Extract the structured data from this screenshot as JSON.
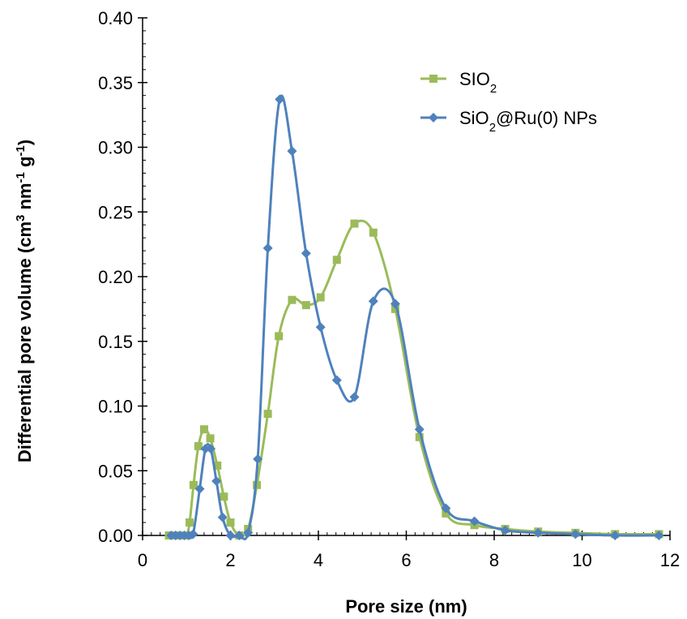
{
  "chart_data": {
    "type": "line",
    "xlabel": "Pore size (nm)",
    "ylabel": {
      "base": "Differential pore volume (cm",
      "sup1": "3",
      "mid": " nm",
      "sup2": "-1",
      "mid2": " g",
      "sup3": "-1",
      "end": ")"
    },
    "xlim": [
      0,
      12
    ],
    "ylim": [
      0,
      0.4
    ],
    "x_ticks": [
      0,
      2,
      4,
      6,
      8,
      10,
      12
    ],
    "x_tick_labels": [
      "0",
      "2",
      "4",
      "6",
      "8",
      "10",
      "12"
    ],
    "y_ticks": [
      0,
      0.05,
      0.1,
      0.15,
      0.2,
      0.25,
      0.3,
      0.35,
      0.4
    ],
    "y_tick_labels": [
      "0.00",
      "0.05",
      "0.10",
      "0.15",
      "0.20",
      "0.25",
      "0.30",
      "0.35",
      "0.40"
    ],
    "legend_position": "top-right",
    "grid": false,
    "series": [
      {
        "name": "SIO2",
        "name_parts": {
          "base": "SIO",
          "sub": "2",
          "rest": ""
        },
        "color": "#9bbb59",
        "marker": "square",
        "points": [
          [
            0.6,
            0.0
          ],
          [
            0.7,
            0.0
          ],
          [
            0.8,
            0.0
          ],
          [
            0.9,
            0.0
          ],
          [
            1.0,
            0.0
          ],
          [
            1.07,
            0.01
          ],
          [
            1.16,
            0.039
          ],
          [
            1.27,
            0.069
          ],
          [
            1.4,
            0.082
          ],
          [
            1.54,
            0.075
          ],
          [
            1.7,
            0.054
          ],
          [
            1.85,
            0.03
          ],
          [
            2.0,
            0.01
          ],
          [
            2.2,
            0.0
          ],
          [
            2.4,
            0.005
          ],
          [
            2.6,
            0.039
          ],
          [
            2.85,
            0.094
          ],
          [
            3.1,
            0.154
          ],
          [
            3.4,
            0.182
          ],
          [
            3.72,
            0.178
          ],
          [
            4.05,
            0.184
          ],
          [
            4.42,
            0.213
          ],
          [
            4.82,
            0.241
          ],
          [
            5.25,
            0.234
          ],
          [
            5.75,
            0.175
          ],
          [
            6.3,
            0.076
          ],
          [
            6.9,
            0.017
          ],
          [
            7.55,
            0.008
          ],
          [
            8.25,
            0.005
          ],
          [
            9.0,
            0.003
          ],
          [
            9.85,
            0.002
          ],
          [
            10.75,
            0.001
          ],
          [
            11.75,
            0.001
          ]
        ]
      },
      {
        "name": "SiO2@Ru(0) NPs",
        "name_parts": {
          "base": "SiO",
          "sub": "2",
          "rest": "@Ru(0) NPs"
        },
        "color": "#4f81bd",
        "marker": "diamond",
        "points": [
          [
            0.65,
            0.0
          ],
          [
            0.75,
            0.0
          ],
          [
            0.85,
            0.0
          ],
          [
            0.95,
            0.0
          ],
          [
            1.05,
            0.0
          ],
          [
            1.15,
            0.001
          ],
          [
            1.3,
            0.036
          ],
          [
            1.43,
            0.067
          ],
          [
            1.55,
            0.067
          ],
          [
            1.68,
            0.042
          ],
          [
            1.82,
            0.014
          ],
          [
            2.0,
            0.0
          ],
          [
            2.2,
            0.0
          ],
          [
            2.4,
            0.002
          ],
          [
            2.62,
            0.059
          ],
          [
            2.85,
            0.222
          ],
          [
            3.12,
            0.337
          ],
          [
            3.4,
            0.297
          ],
          [
            3.72,
            0.218
          ],
          [
            4.05,
            0.161
          ],
          [
            4.42,
            0.12
          ],
          [
            4.82,
            0.107
          ],
          [
            5.25,
            0.181
          ],
          [
            5.75,
            0.179
          ],
          [
            6.3,
            0.082
          ],
          [
            6.9,
            0.021
          ],
          [
            7.55,
            0.011
          ],
          [
            8.25,
            0.004
          ],
          [
            9.0,
            0.002
          ],
          [
            9.85,
            0.001
          ],
          [
            10.75,
            0.0
          ],
          [
            11.75,
            0.0
          ]
        ]
      }
    ]
  }
}
